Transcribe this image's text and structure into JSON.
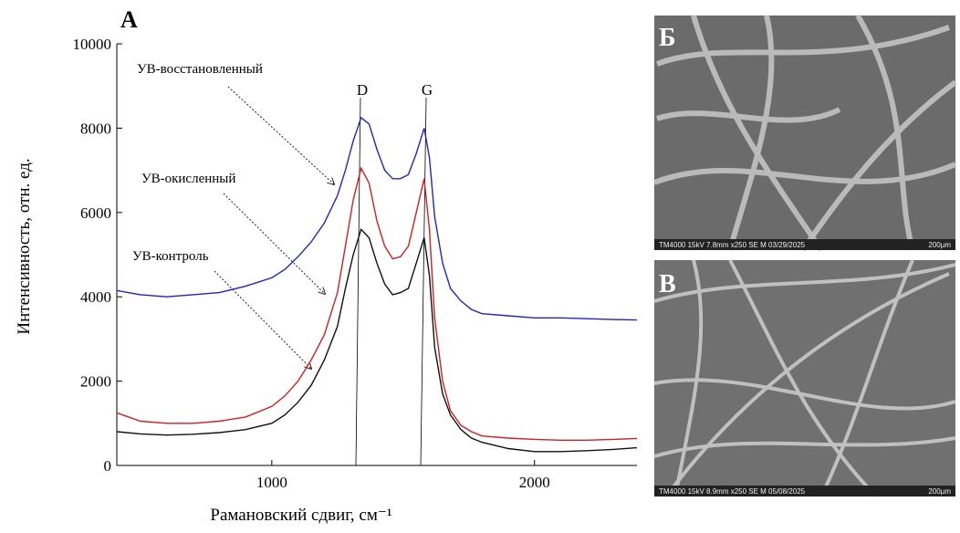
{
  "chart_data": {
    "type": "line",
    "panel_label": "А",
    "x_label": "Рамановский сдвиг, см⁻¹",
    "y_label": "Интенсивность, отн. ед.",
    "xlim": [
      410,
      2390
    ],
    "ylim": [
      0,
      10000
    ],
    "xticks": [
      1000,
      2000
    ],
    "yticks": [
      0,
      2000,
      4000,
      6000,
      8000,
      10000
    ],
    "annotations": [
      "D",
      "G"
    ],
    "x": [
      410,
      500,
      600,
      700,
      800,
      900,
      1000,
      1050,
      1100,
      1150,
      1200,
      1250,
      1280,
      1310,
      1340,
      1370,
      1400,
      1430,
      1460,
      1490,
      1520,
      1550,
      1580,
      1600,
      1620,
      1650,
      1680,
      1720,
      1760,
      1800,
      1900,
      2000,
      2100,
      2200,
      2300,
      2390
    ],
    "series": [
      {
        "name": "УВ-восстановленный",
        "color": "#2424c0",
        "values": [
          4150,
          4050,
          4000,
          4050,
          4100,
          4250,
          4450,
          4650,
          4950,
          5300,
          5750,
          6400,
          7000,
          7700,
          8250,
          8100,
          7500,
          7000,
          6800,
          6800,
          6900,
          7400,
          8000,
          7300,
          5900,
          4800,
          4200,
          3900,
          3700,
          3600,
          3550,
          3500,
          3500,
          3480,
          3460,
          3450
        ]
      },
      {
        "name": "УВ-окисленный",
        "color": "#d02020",
        "values": [
          1250,
          1050,
          1000,
          1000,
          1050,
          1150,
          1400,
          1650,
          2000,
          2500,
          3100,
          4100,
          5200,
          6300,
          7050,
          6700,
          5800,
          5200,
          4900,
          4950,
          5200,
          6000,
          6800,
          5600,
          3500,
          2000,
          1300,
          950,
          800,
          700,
          650,
          620,
          600,
          600,
          620,
          640
        ]
      },
      {
        "name": "УВ-контроль",
        "color": "#111111",
        "values": [
          800,
          750,
          720,
          740,
          780,
          850,
          1000,
          1200,
          1500,
          1900,
          2500,
          3300,
          4200,
          5000,
          5600,
          5400,
          4800,
          4300,
          4050,
          4100,
          4200,
          4800,
          5400,
          4500,
          2800,
          1700,
          1200,
          850,
          650,
          550,
          400,
          330,
          330,
          350,
          380,
          420
        ]
      }
    ]
  },
  "images": [
    {
      "label": "Б",
      "caption": "TM4000 15kV 7.8mm x250 SE M 03/29/2025",
      "scale": "200µm"
    },
    {
      "label": "В",
      "caption": "TM4000 15kV 8.9mm x250 SE M 05/08/2025",
      "scale": "200µm"
    }
  ]
}
